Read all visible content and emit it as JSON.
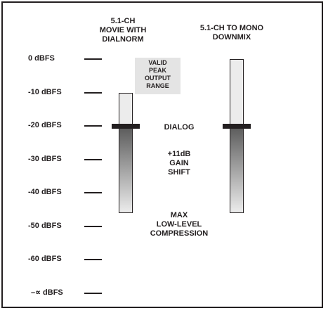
{
  "scale": {
    "ticks": [
      "0 dBFS",
      "-10 dBFS",
      "-20 dBFS",
      "-30 dBFS",
      "-40 dBFS",
      "-50 dBFS",
      "-60 dBFS",
      "–∝ dBFS"
    ]
  },
  "columns": {
    "left_title": "5.1-CH\nMOVIE WITH\nDIALNORM",
    "right_title": "5.1-CH TO MONO\nDOWNMIX"
  },
  "annotations": {
    "valid_peak": "VALID\nPEAK\nOUTPUT\nRANGE",
    "dialog": "DIALOG",
    "gain_shift": "+11dB\nGAIN\nSHIFT",
    "max_compression": "MAX\nLOW-LEVEL\nCOMPRESSION"
  },
  "levels": {
    "left_bar": {
      "top_dbfs": -10,
      "dialog_dbfs": -20,
      "bottom_dbfs": -46
    },
    "right_bar": {
      "top_dbfs": 0,
      "dialog_dbfs": -20,
      "bottom_dbfs": -46
    }
  },
  "colors": {
    "ink": "#231f20",
    "valid_range_fill": "#e4e4e4",
    "bar_light": "#ececec",
    "bar_dark": "#5a5a5a"
  }
}
